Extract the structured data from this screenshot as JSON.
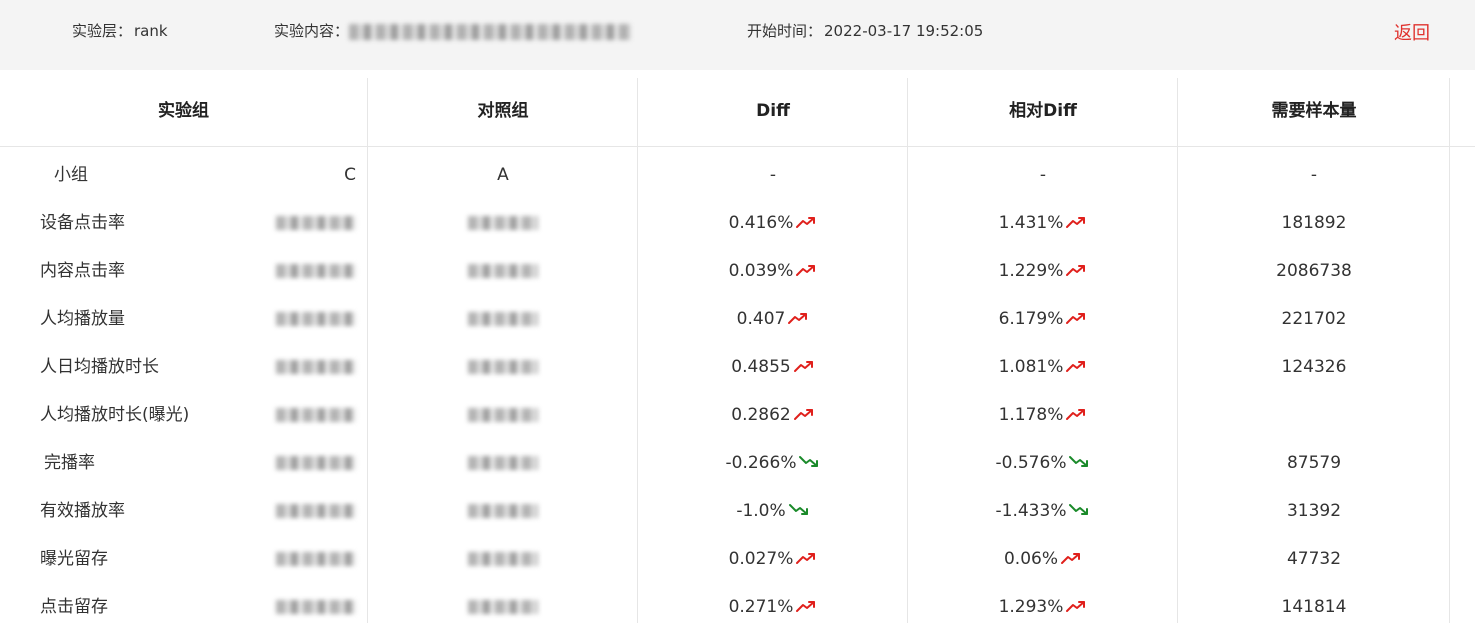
{
  "header": {
    "layer_label": "实验层：",
    "layer_value": "rank",
    "content_label": "实验内容：",
    "start_label": "开始时间：",
    "start_value": "2022-03-17 19:52:05",
    "back_label": "返回"
  },
  "colors": {
    "up": "#e0201c",
    "down": "#1a8a2a",
    "accent": "#e0322e"
  },
  "table": {
    "columns": [
      "实验组",
      "对照组",
      "Diff",
      "相对Diff",
      "需要样本量"
    ],
    "group_row": {
      "label": "小组",
      "experiment": "C",
      "control": "A",
      "diff": "-",
      "rel_diff": "-",
      "sample": "-"
    },
    "rows": [
      {
        "label": "设备点击率",
        "diff": "0.416%",
        "diff_trend": "up",
        "rel_diff": "1.431%",
        "rel_trend": "up",
        "sample": "181892"
      },
      {
        "label": "内容点击率",
        "diff": "0.039%",
        "diff_trend": "up",
        "rel_diff": "1.229%",
        "rel_trend": "up",
        "sample": "2086738"
      },
      {
        "label": "人均播放量",
        "diff": "0.407",
        "diff_trend": "up",
        "rel_diff": "6.179%",
        "rel_trend": "up",
        "sample": "221702"
      },
      {
        "label": "人日均播放时长",
        "diff": "0.4855",
        "diff_trend": "up",
        "rel_diff": "1.081%",
        "rel_trend": "up",
        "sample": "124326"
      },
      {
        "label": "人均播放时长(曝光)",
        "diff": "0.2862",
        "diff_trend": "up",
        "rel_diff": "1.178%",
        "rel_trend": "up",
        "sample": ""
      },
      {
        "label": "完播率",
        "diff": "-0.266%",
        "diff_trend": "down",
        "rel_diff": "-0.576%",
        "rel_trend": "down",
        "sample": "87579"
      },
      {
        "label": "有效播放率",
        "diff": "-1.0%",
        "diff_trend": "down",
        "rel_diff": "-1.433%",
        "rel_trend": "down",
        "sample": "31392"
      },
      {
        "label": "曝光留存",
        "diff": "0.027%",
        "diff_trend": "up",
        "rel_diff": "0.06%",
        "rel_trend": "up",
        "sample": "47732"
      },
      {
        "label": "点击留存",
        "diff": "0.271%",
        "diff_trend": "up",
        "rel_diff": "1.293%",
        "rel_trend": "up",
        "sample": "141814"
      }
    ]
  }
}
